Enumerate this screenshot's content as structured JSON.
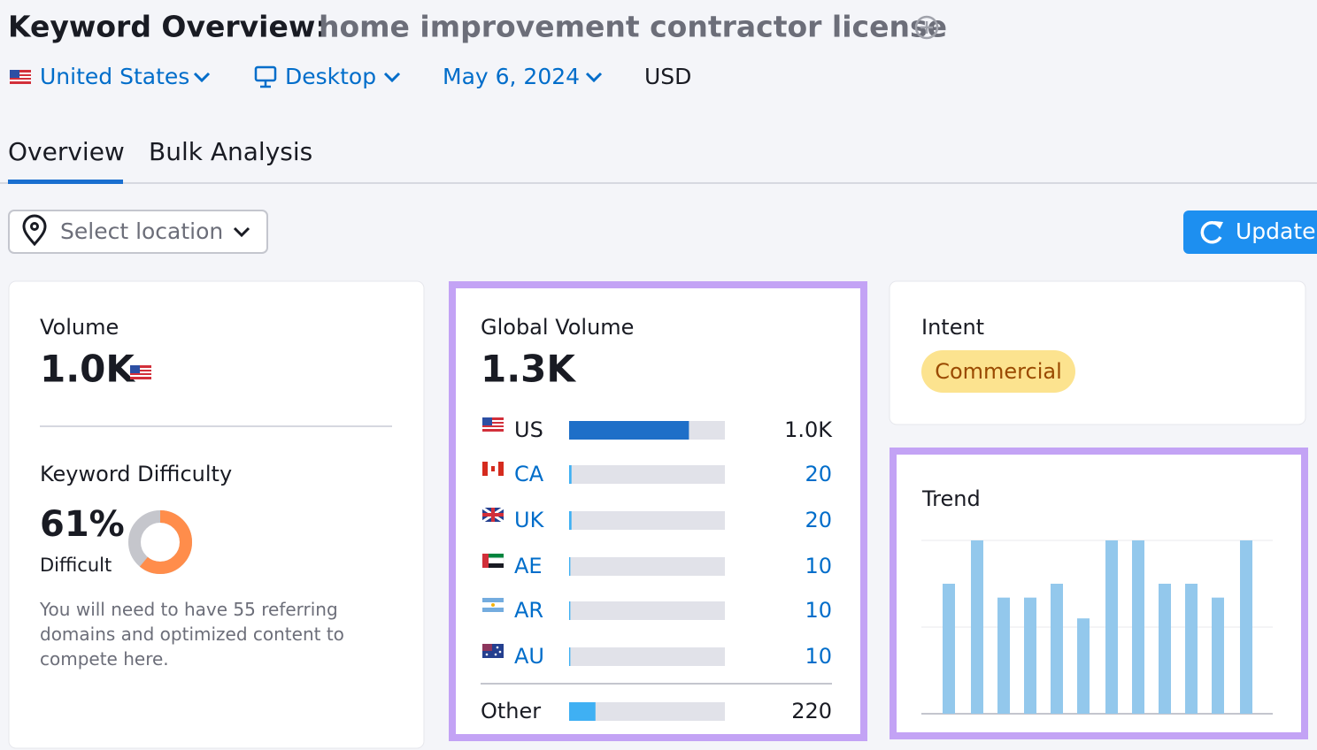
{
  "header": {
    "title": "Keyword Overview:",
    "keyword": "home improvement contractor license",
    "country": "United States",
    "device": "Desktop",
    "date": "May 6, 2024",
    "currency": "USD"
  },
  "tabs": [
    "Overview",
    "Bulk Analysis"
  ],
  "location_placeholder": "Select location",
  "update_button": "Update",
  "volume": {
    "label": "Volume",
    "value": "1.0K"
  },
  "keyword_difficulty": {
    "label": "Keyword Difficulty",
    "value": 61,
    "value_label": "61%",
    "level": "Difficult",
    "note": "You will need to have 55 referring domains and optimized content to compete here."
  },
  "global_volume": {
    "type": "bar",
    "title": "Global Volume",
    "total": 1300,
    "total_label": "1.3K",
    "categories": [
      "US",
      "CA",
      "UK",
      "AE",
      "AR",
      "AU",
      "Other"
    ],
    "values": [
      1000,
      20,
      20,
      10,
      10,
      10,
      220
    ],
    "value_labels": [
      "1.0K",
      "20",
      "20",
      "10",
      "10",
      "10",
      "220"
    ],
    "colors": [
      "#1e6fc8",
      "#3fb0f3",
      "#3fb0f3",
      "#3fb0f3",
      "#3fb0f3",
      "#3fb0f3",
      "#3fb0f3"
    ]
  },
  "intent": {
    "label": "Intent",
    "value": "Commercial"
  },
  "trend": {
    "type": "bar",
    "title": "Trend",
    "values": [
      0.75,
      1,
      0.67,
      0.67,
      0.75,
      0.55,
      1,
      1,
      0.75,
      0.75,
      0.67,
      1
    ],
    "ylim": [
      0,
      1
    ],
    "color": "#93c8ec"
  }
}
